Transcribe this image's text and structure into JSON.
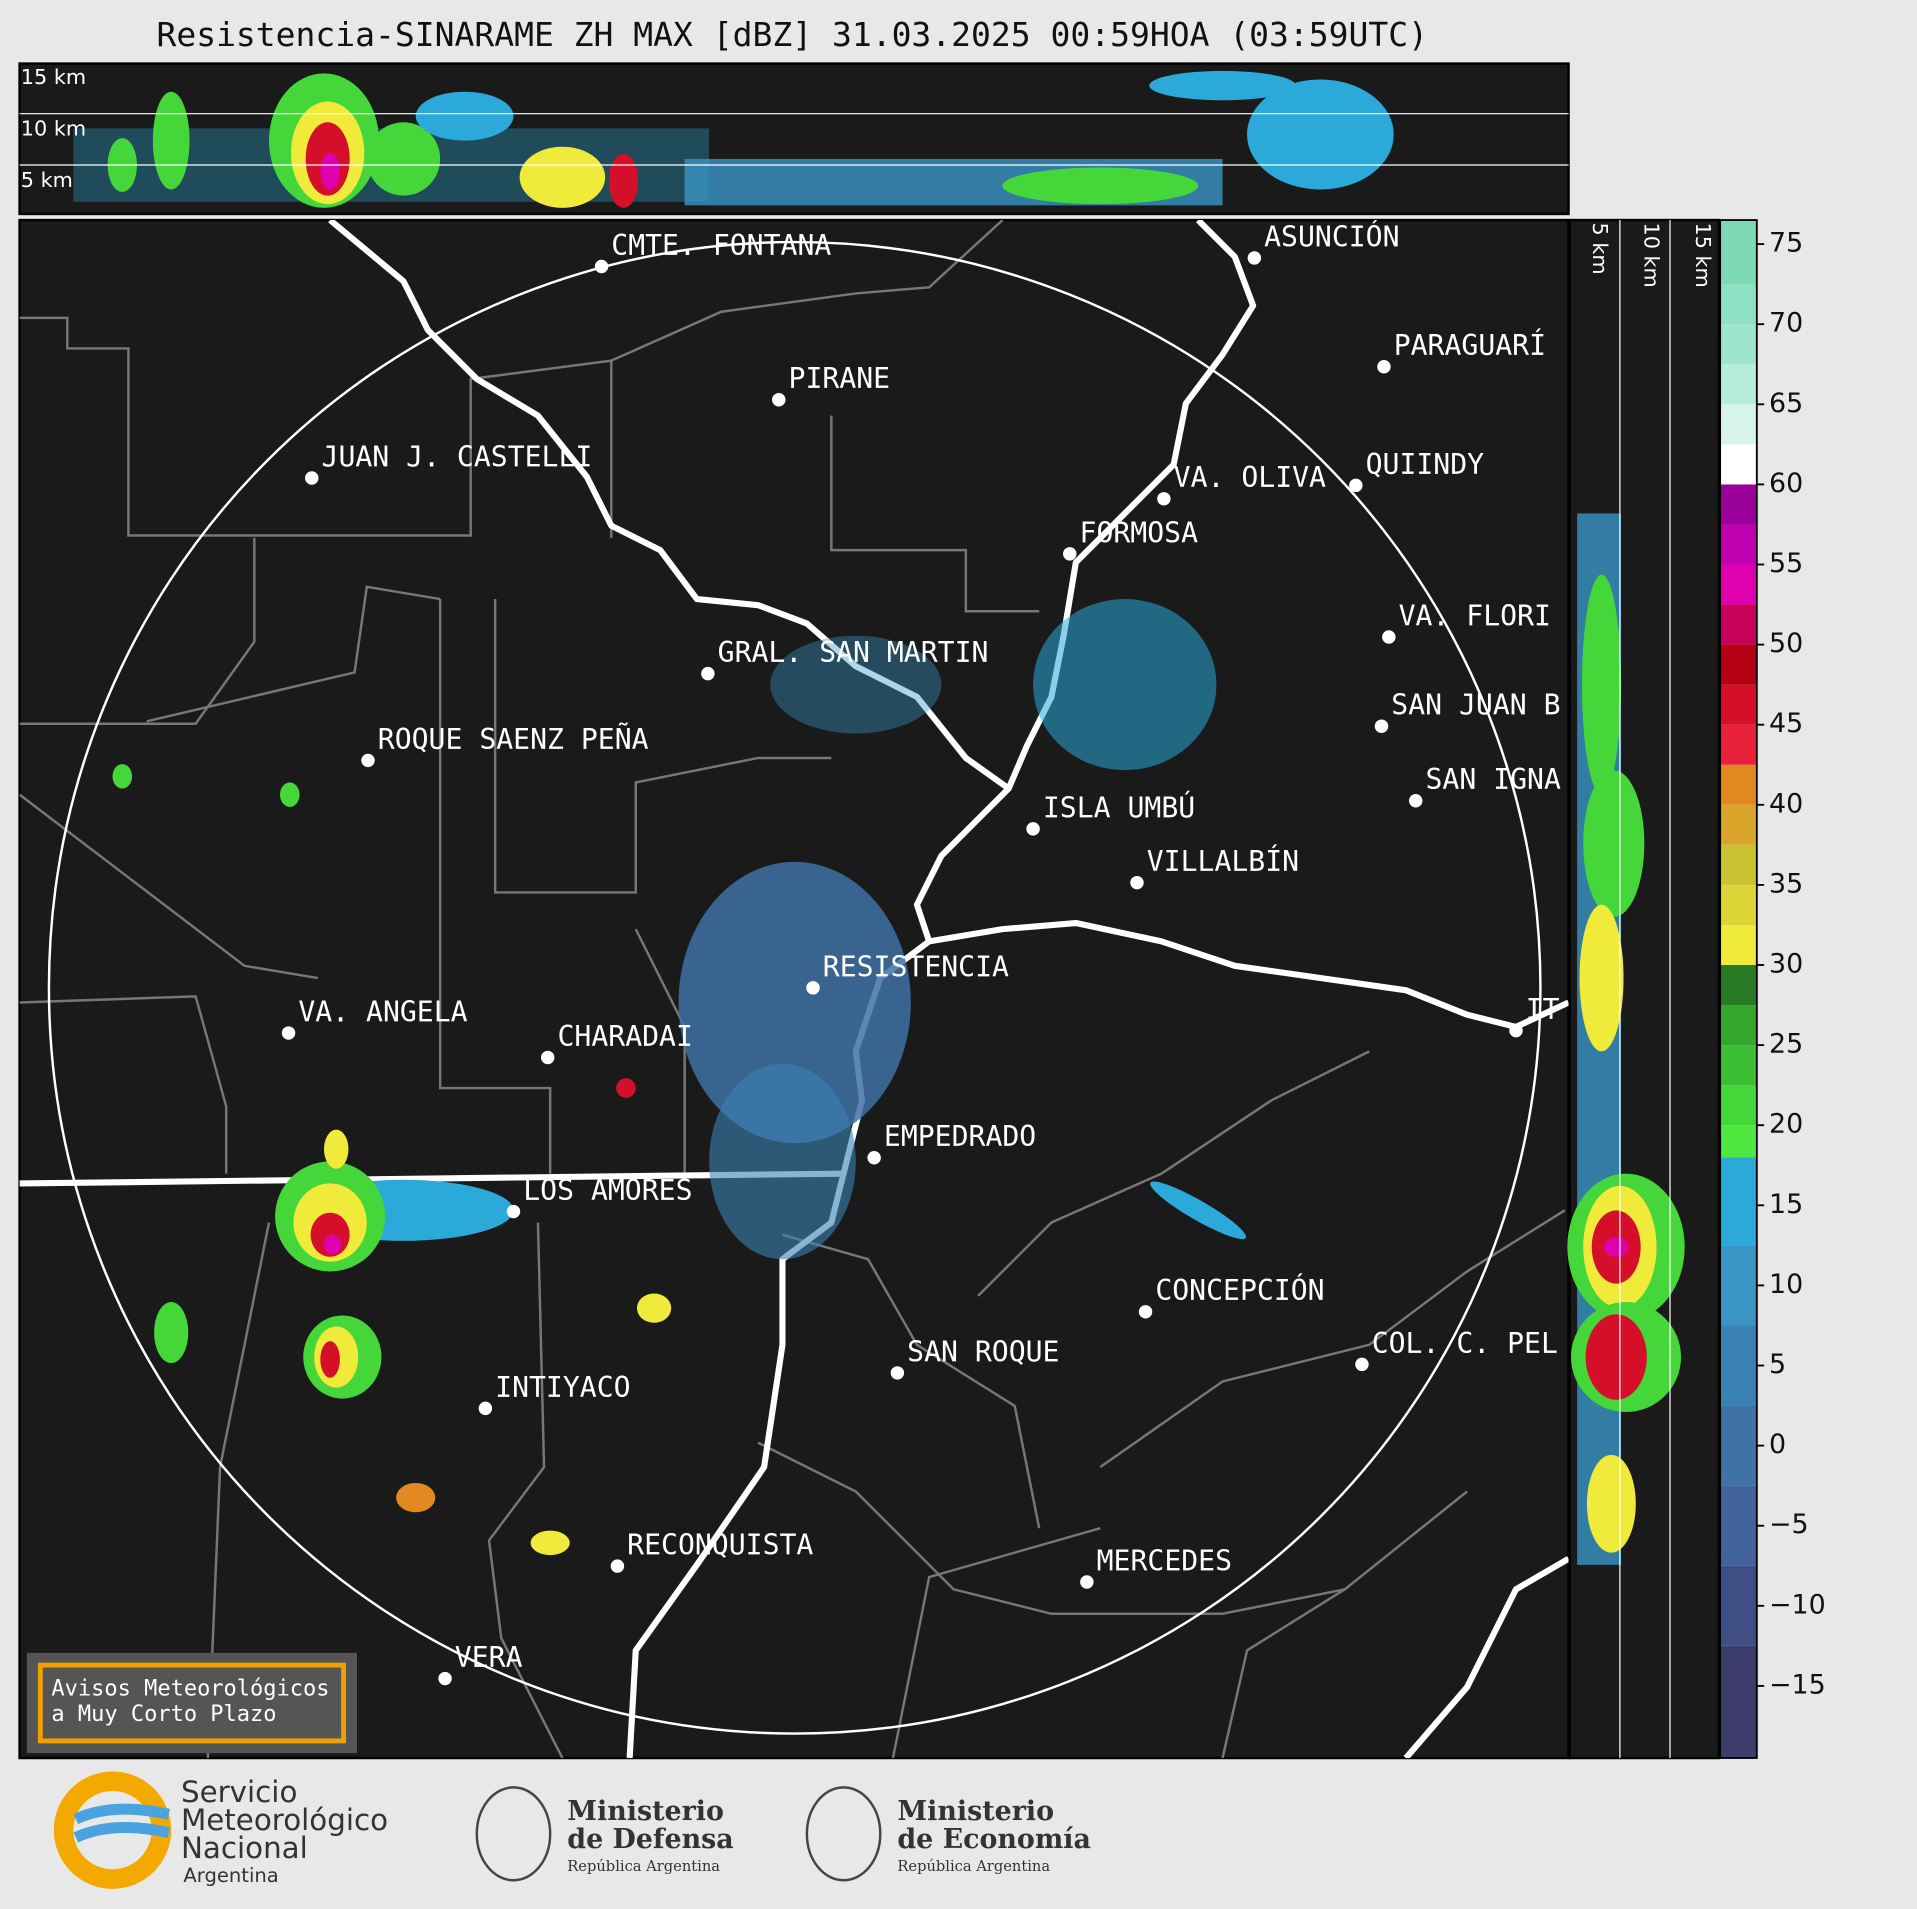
{
  "header": {
    "title": "Resistencia-SINARAME ZH MAX [dBZ] 31.03.2025 00:59HOA (03:59UTC)"
  },
  "top_panel": {
    "heights": [
      "15 km",
      "10 km",
      "5 km"
    ]
  },
  "side_panel": {
    "heights": [
      "5 km",
      "10 km",
      "15 km"
    ]
  },
  "cities": [
    "CMTE. FONTANA",
    "PIRANE",
    "JUAN J. CASTELLI",
    "ASUNCIÓN",
    "PARAGUARÍ",
    "VA. OLIVA",
    "QUIINDY",
    "FORMOSA",
    "VA. FLORI",
    "GRAL. SAN MARTIN",
    "SAN JUAN B",
    "ROQUE SAENZ PEÑA",
    "SAN IGNA",
    "ISLA UMBÚ",
    "VILLALBÍN",
    "RESISTENCIA",
    "VA. ANGELA",
    "CHARADAI",
    "IT",
    "EMPEDRADO",
    "LOS AMORES",
    "CONCEPCIÓN",
    "SAN ROQUE",
    "COL. C. PEL",
    "INTIYACO",
    "RECONQUISTA",
    "MERCEDES",
    "VERA"
  ],
  "notice": [
    "Avisos Meteorológicos",
    "a Muy Corto Plazo"
  ],
  "colorbar": {
    "ylim": [
      -19.5,
      76.5
    ],
    "yticks": [
      75,
      70,
      65,
      60,
      55,
      50,
      45,
      40,
      35,
      30,
      25,
      20,
      15,
      10,
      5,
      0,
      {
        "value": -5,
        "label": "−5"
      },
      {
        "value": -10,
        "label": "−10"
      },
      {
        "value": -15,
        "label": "−15"
      }
    ],
    "stops": [
      {
        "value": -19.5,
        "color": "#3c3d6b"
      },
      {
        "value": -12.5,
        "color": "#3f4f86"
      },
      {
        "value": -7.5,
        "color": "#41629a"
      },
      {
        "value": -2.5,
        "color": "#3f72a6"
      },
      {
        "value": 2.5,
        "color": "#3b82b4"
      },
      {
        "value": 7.5,
        "color": "#3a95c5"
      },
      {
        "value": 12.5,
        "color": "#2ba9d8"
      },
      {
        "value": 18,
        "color": "#4ee840"
      },
      {
        "value": 20,
        "color": "#45d63a"
      },
      {
        "value": 22.5,
        "color": "#3cbf34"
      },
      {
        "value": 25,
        "color": "#34a82e"
      },
      {
        "value": 27.5,
        "color": "#287a24"
      },
      {
        "value": 30,
        "color": "#f0ea3a"
      },
      {
        "value": 32.5,
        "color": "#ddd435"
      },
      {
        "value": 35,
        "color": "#c9c232"
      },
      {
        "value": 37.5,
        "color": "#d9a52a"
      },
      {
        "value": 40,
        "color": "#e28a1f"
      },
      {
        "value": 42.5,
        "color": "#e8203a"
      },
      {
        "value": 45,
        "color": "#d50f2a"
      },
      {
        "value": 47.5,
        "color": "#b30012"
      },
      {
        "value": 50,
        "color": "#c8005a"
      },
      {
        "value": 52.5,
        "color": "#e000b0"
      },
      {
        "value": 55,
        "color": "#c000b0"
      },
      {
        "value": 57.5,
        "color": "#9a009a"
      },
      {
        "value": 60,
        "color": "#ffffff"
      },
      {
        "value": 62.5,
        "color": "#d6f5e8"
      },
      {
        "value": 65,
        "color": "#b5eed9"
      },
      {
        "value": 67.5,
        "color": "#9ee6cb"
      },
      {
        "value": 70,
        "color": "#8de0c2"
      },
      {
        "value": 72.5,
        "color": "#7dd8b6"
      }
    ]
  },
  "footer": {
    "smn": [
      "Servicio",
      "Meteorológico",
      "Nacional",
      "Argentina"
    ],
    "defensa": [
      "Ministerio",
      "de Defensa",
      "República Argentina"
    ],
    "economia": [
      "Ministerio",
      "de Economía",
      "República Argentina"
    ]
  }
}
